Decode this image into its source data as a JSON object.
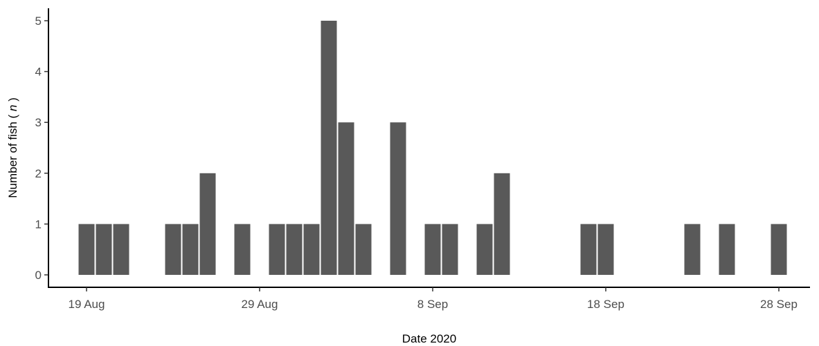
{
  "chart_data": {
    "type": "bar",
    "xlabel": "Date 2020",
    "ylabel": "Number of fish (n)",
    "ylabel_parts": {
      "prefix": "Number of fish ( ",
      "italic": "n",
      "suffix": " )"
    },
    "ylim": [
      0,
      5
    ],
    "yticks": [
      0,
      1,
      2,
      3,
      4,
      5
    ],
    "xlim": [
      "2020-08-17",
      "2020-09-30"
    ],
    "xticks": [
      "2020-08-19",
      "2020-08-29",
      "2020-09-08",
      "2020-09-18",
      "2020-09-28"
    ],
    "xtick_labels": [
      "19 Aug",
      "29 Aug",
      "8 Sep",
      "18 Sep",
      "28 Sep"
    ],
    "grid": false,
    "bar_color": "#595959",
    "points": [
      {
        "date": "2020-08-19",
        "value": 1
      },
      {
        "date": "2020-08-20",
        "value": 1
      },
      {
        "date": "2020-08-21",
        "value": 1
      },
      {
        "date": "2020-08-24",
        "value": 1
      },
      {
        "date": "2020-08-25",
        "value": 1
      },
      {
        "date": "2020-08-26",
        "value": 2
      },
      {
        "date": "2020-08-28",
        "value": 1
      },
      {
        "date": "2020-08-30",
        "value": 1
      },
      {
        "date": "2020-08-31",
        "value": 1
      },
      {
        "date": "2020-09-01",
        "value": 1
      },
      {
        "date": "2020-09-02",
        "value": 5
      },
      {
        "date": "2020-09-03",
        "value": 3
      },
      {
        "date": "2020-09-04",
        "value": 1
      },
      {
        "date": "2020-09-06",
        "value": 3
      },
      {
        "date": "2020-09-08",
        "value": 1
      },
      {
        "date": "2020-09-09",
        "value": 1
      },
      {
        "date": "2020-09-11",
        "value": 1
      },
      {
        "date": "2020-09-12",
        "value": 2
      },
      {
        "date": "2020-09-17",
        "value": 1
      },
      {
        "date": "2020-09-18",
        "value": 1
      },
      {
        "date": "2020-09-23",
        "value": 1
      },
      {
        "date": "2020-09-25",
        "value": 1
      },
      {
        "date": "2020-09-28",
        "value": 1
      }
    ]
  }
}
